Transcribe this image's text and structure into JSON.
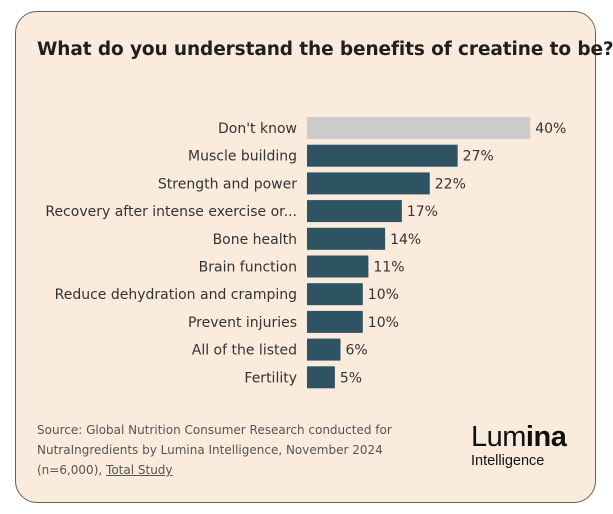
{
  "colors": {
    "highlight": "#cbcbcb",
    "bar": "#2e5363",
    "text": "#333333"
  },
  "chart_data": {
    "type": "bar",
    "orientation": "horizontal",
    "title": "What do you understand the benefits of creatine to be?",
    "categories": [
      "Don't know",
      "Muscle building",
      "Strength and power",
      "Recovery after intense exercise or...",
      "Bone health",
      "Brain function",
      "Reduce dehydration and cramping",
      "Prevent injuries",
      "All of the listed",
      "Fertility"
    ],
    "values": [
      40,
      27,
      22,
      17,
      14,
      11,
      10,
      10,
      6,
      5
    ],
    "value_labels": [
      "40%",
      "27%",
      "22%",
      "17%",
      "14%",
      "11%",
      "10%",
      "10%",
      "6%",
      "5%"
    ],
    "unit": "%"
  },
  "source": {
    "text": "Source: Global Nutrition Consumer Research conducted for NutraIngredients by Lumina Intelligence, November 2024 (n=6,000),",
    "link": "Total Study"
  },
  "logo": {
    "part1": "Lum",
    "part2": "ina",
    "sub": "Intelligence"
  }
}
